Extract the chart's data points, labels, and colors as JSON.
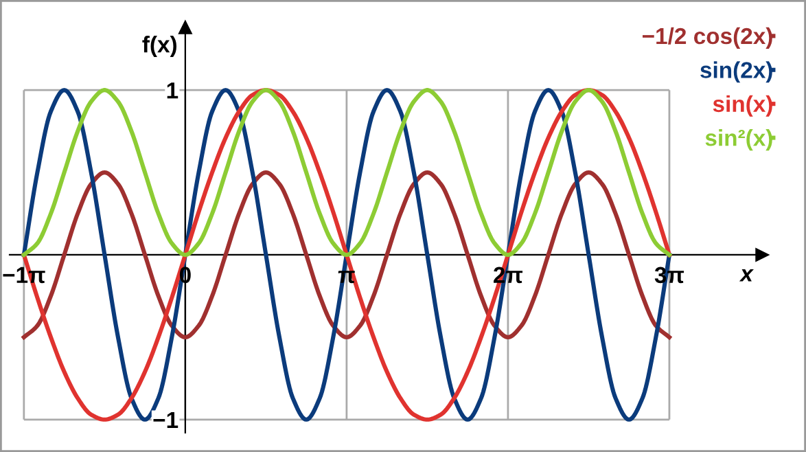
{
  "chart_data": {
    "type": "line",
    "xlabel": "x",
    "ylabel": "f(x)",
    "x": [
      -3.1416,
      -2.8798,
      -2.618,
      -2.3562,
      -2.0944,
      -1.8326,
      -1.5708,
      -1.309,
      -1.0472,
      -0.7854,
      -0.5236,
      -0.2618,
      0,
      0.2618,
      0.5236,
      0.7854,
      1.0472,
      1.309,
      1.5708,
      1.8326,
      2.0944,
      2.3562,
      2.618,
      2.8798,
      3.1416,
      3.4034,
      3.6652,
      3.927,
      4.1888,
      4.4506,
      4.7124,
      4.9742,
      5.236,
      5.4978,
      5.7596,
      6.0214,
      6.2832,
      6.545,
      6.8068,
      7.0686,
      7.3304,
      7.5922,
      7.854,
      8.1158,
      8.3776,
      8.6394,
      8.9012,
      9.163,
      9.4248
    ],
    "series": [
      {
        "name": "−1/2 cos(2x)",
        "color": "#a0302f",
        "values": [
          -0.5,
          -0.43,
          -0.25,
          0,
          0.25,
          0.43,
          0.5,
          0.43,
          0.25,
          0,
          -0.25,
          -0.43,
          -0.5,
          -0.43,
          -0.25,
          0,
          0.25,
          0.43,
          0.5,
          0.43,
          0.25,
          0,
          -0.25,
          -0.43,
          -0.5,
          -0.43,
          -0.25,
          0,
          0.25,
          0.43,
          0.5,
          0.43,
          0.25,
          0,
          -0.25,
          -0.43,
          -0.5,
          -0.43,
          -0.25,
          0,
          0.25,
          0.43,
          0.5,
          0.43,
          0.25,
          0,
          -0.25,
          -0.43,
          -0.5
        ]
      },
      {
        "name": "sin(2x)",
        "color": "#0b3b7c",
        "values": [
          0,
          0.5,
          0.87,
          1,
          0.87,
          0.5,
          0,
          -0.5,
          -0.87,
          -1,
          -0.87,
          -0.5,
          0,
          0.5,
          0.87,
          1,
          0.87,
          0.5,
          0,
          -0.5,
          -0.87,
          -1,
          -0.87,
          -0.5,
          0,
          0.5,
          0.87,
          1,
          0.87,
          0.5,
          0,
          -0.5,
          -0.87,
          -1,
          -0.87,
          -0.5,
          0,
          0.5,
          0.87,
          1,
          0.87,
          0.5,
          0,
          -0.5,
          -0.87,
          -1,
          -0.87,
          -0.5,
          0
        ]
      },
      {
        "name": "sin(x)",
        "color": "#e0332f",
        "values": [
          0,
          -0.26,
          -0.5,
          -0.71,
          -0.87,
          -0.97,
          -1,
          -0.97,
          -0.87,
          -0.71,
          -0.5,
          -0.26,
          0,
          0.26,
          0.5,
          0.71,
          0.87,
          0.97,
          1,
          0.97,
          0.87,
          0.71,
          0.5,
          0.26,
          0,
          -0.26,
          -0.5,
          -0.71,
          -0.87,
          -0.97,
          -1,
          -0.97,
          -0.87,
          -0.71,
          -0.5,
          -0.26,
          0,
          0.26,
          0.5,
          0.71,
          0.87,
          0.97,
          1,
          0.97,
          0.87,
          0.71,
          0.5,
          0.26,
          0
        ]
      },
      {
        "name": "sin²(x)",
        "color": "#8dcc34",
        "values": [
          0,
          0.07,
          0.25,
          0.5,
          0.75,
          0.93,
          1,
          0.93,
          0.75,
          0.5,
          0.25,
          0.07,
          0,
          0.07,
          0.25,
          0.5,
          0.75,
          0.93,
          1,
          0.93,
          0.75,
          0.5,
          0.25,
          0.07,
          0,
          0.07,
          0.25,
          0.5,
          0.75,
          0.93,
          1,
          0.93,
          0.75,
          0.5,
          0.25,
          0.07,
          0,
          0.07,
          0.25,
          0.5,
          0.75,
          0.93,
          1,
          0.93,
          0.75,
          0.5,
          0.25,
          0.07,
          0
        ]
      }
    ],
    "xlim": [
      -3.42,
      11.23
    ],
    "ylim": [
      -1.08,
      1.38
    ],
    "xticks": [
      {
        "value": -3.1416,
        "label": "−1π"
      },
      0,
      {
        "value": 3.1416,
        "label": "π"
      },
      {
        "value": 6.2832,
        "label": "2π"
      },
      {
        "value": 9.4248,
        "label": "3π"
      }
    ],
    "yticks": [
      {
        "value": -1,
        "label": "−1"
      },
      1
    ],
    "grid": true,
    "legend": "top right",
    "line_style": "solid",
    "marker": "none"
  }
}
